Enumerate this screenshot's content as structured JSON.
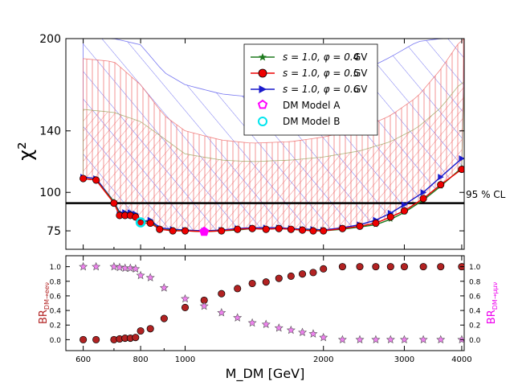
{
  "colors": {
    "s04": "#1e7a1e",
    "s05": "#ee0000",
    "s06": "#1a1acc",
    "model_a": "#ff00ff",
    "model_b": "#00e5ee",
    "br_e": "#b22222",
    "br_mu": "#ee82ee",
    "hatch_outer": "#5555ee",
    "hatch_mid": "#ee6666",
    "hatch_inner": "#9aa05a"
  },
  "chart_data": {
    "type": "line",
    "title": "",
    "xlabel": "M_DM [GeV]",
    "xscale": "log",
    "xlim": [
      550,
      4050
    ],
    "x_ticks": [
      600,
      800,
      1000,
      2000,
      3000,
      4000
    ],
    "x_tick_labels": [
      "600",
      "800",
      "1000",
      "2000",
      "3000",
      "4000"
    ],
    "x_minor_ticks": [
      700,
      900,
      5000
    ],
    "top": {
      "ylabel": "χ²",
      "ylim": [
        63,
        200
      ],
      "y_ticks": [
        75,
        100,
        140,
        200
      ],
      "y_tick_labels": [
        "75",
        "100",
        "140",
        "200"
      ],
      "cl_line": {
        "y": 93,
        "label": "95 % CL"
      },
      "masses": [
        600,
        640,
        700,
        720,
        740,
        760,
        780,
        800,
        840,
        880,
        940,
        1000,
        1100,
        1200,
        1300,
        1400,
        1500,
        1600,
        1700,
        1800,
        1900,
        2000,
        2200,
        2400,
        2600,
        2800,
        3000,
        3300,
        3600,
        4000
      ],
      "series": [
        {
          "name": "s=1.0, φ=0.4  GV",
          "label_main": "s = 1.0,  φ = 0.4",
          "unit": "GV",
          "marker": "star",
          "color_key": "s04",
          "values": [
            109,
            108,
            94,
            86,
            86,
            86,
            85,
            81,
            81,
            76,
            75.5,
            75,
            74.5,
            75,
            75.5,
            76.5,
            76,
            76.5,
            76,
            75.5,
            75.5,
            75,
            76,
            77.5,
            79,
            82.5,
            87,
            95,
            104,
            116
          ]
        },
        {
          "name": "s=1.0, φ=0.5  GV",
          "label_main": "s = 1.0,  φ = 0.5",
          "unit": "GV",
          "marker": "circle",
          "color_key": "s05",
          "values": [
            109,
            108,
            93,
            85,
            85,
            85,
            84,
            80,
            80,
            76,
            75,
            75,
            74.5,
            75,
            76,
            76.5,
            76,
            76.5,
            76,
            75.5,
            75,
            75,
            76.5,
            78,
            80,
            84,
            88,
            96,
            105,
            115
          ]
        },
        {
          "name": "s=1.0, φ=0.6  GV",
          "label_main": "s = 1.0,  φ = 0.6",
          "unit": "GV",
          "marker": "triangle",
          "color_key": "s06",
          "values": [
            110,
            109,
            94,
            87,
            87,
            87,
            86,
            81,
            82,
            77,
            76,
            75.5,
            75,
            75.5,
            76.5,
            77,
            77,
            77,
            76.5,
            76,
            76,
            75.5,
            77,
            79,
            82,
            86.5,
            92,
            100,
            110,
            122
          ]
        }
      ],
      "model_a": {
        "name": "DM Model A",
        "mass": 1100,
        "chi2": 74.5,
        "marker": "pentagon",
        "color_key": "model_a"
      },
      "model_b": {
        "name": "DM Model B",
        "mass": 800,
        "chi2": 80.5,
        "marker": "circle-open",
        "color_key": "model_b"
      },
      "bands": [
        {
          "name": "outer",
          "color_key": "hatch_outer",
          "hatch": "diagonal-up",
          "upper_masses": [
            600,
            700,
            800,
            900,
            1000,
            1200,
            1400,
            1700,
            2000,
            2400,
            2800,
            3200,
            3600,
            4000
          ],
          "upper_values": [
            200,
            200,
            196,
            178,
            170,
            164,
            162,
            165,
            170,
            178,
            188,
            198,
            200,
            200
          ]
        },
        {
          "name": "middle",
          "color_key": "hatch_mid",
          "hatch": "vertical",
          "upper_masses": [
            600,
            700,
            800,
            900,
            1000,
            1200,
            1400,
            1700,
            2000,
            2400,
            2800,
            3200,
            3600,
            4000
          ],
          "upper_values": [
            187,
            185,
            170,
            150,
            140,
            134,
            132,
            133,
            136,
            141,
            150,
            162,
            180,
            200
          ]
        },
        {
          "name": "inner",
          "color_key": "hatch_inner",
          "hatch": "diagonal-down",
          "upper_masses": [
            600,
            700,
            800,
            900,
            1000,
            1200,
            1400,
            1700,
            2000,
            2400,
            2800,
            3200,
            3600,
            4000
          ],
          "upper_values": [
            154,
            152,
            146,
            135,
            125,
            121,
            120,
            121,
            123,
            127,
            133,
            142,
            155,
            172
          ]
        }
      ]
    },
    "bottom": {
      "ylabel_left": "BR_DM→eeν",
      "ylabel_left_main": "BR",
      "ylabel_left_sub": "DM→eeν",
      "ylabel_right": "BR_DM→μμν",
      "ylabel_right_main": "BR",
      "ylabel_right_sub": "DM→μμν",
      "ylim": [
        -0.15,
        1.15
      ],
      "y_ticks": [
        0.0,
        0.2,
        0.4,
        0.6,
        0.8,
        1.0
      ],
      "y_tick_labels": [
        "0.0",
        "0.2",
        "0.4",
        "0.6",
        "0.8",
        "1.0"
      ],
      "masses": [
        600,
        640,
        700,
        720,
        740,
        760,
        780,
        800,
        840,
        900,
        1000,
        1100,
        1200,
        1300,
        1400,
        1500,
        1600,
        1700,
        1800,
        1900,
        2000,
        2200,
        2400,
        2600,
        2800,
        3000,
        3300,
        3600,
        4000
      ],
      "br_e": [
        0.0,
        0.0,
        0.0,
        0.01,
        0.02,
        0.02,
        0.03,
        0.12,
        0.15,
        0.29,
        0.44,
        0.54,
        0.63,
        0.7,
        0.77,
        0.79,
        0.84,
        0.87,
        0.9,
        0.92,
        0.97,
        1.0,
        1.0,
        1.0,
        1.0,
        1.0,
        1.0,
        1.0,
        1.0
      ],
      "br_mu": [
        1.0,
        1.0,
        1.0,
        0.99,
        0.98,
        0.98,
        0.97,
        0.88,
        0.85,
        0.71,
        0.56,
        0.46,
        0.37,
        0.3,
        0.23,
        0.21,
        0.16,
        0.13,
        0.1,
        0.08,
        0.03,
        0.0,
        0.0,
        0.0,
        0.0,
        0.0,
        0.0,
        0.0,
        0.0
      ]
    },
    "legend": {
      "placement": "top-right"
    }
  }
}
